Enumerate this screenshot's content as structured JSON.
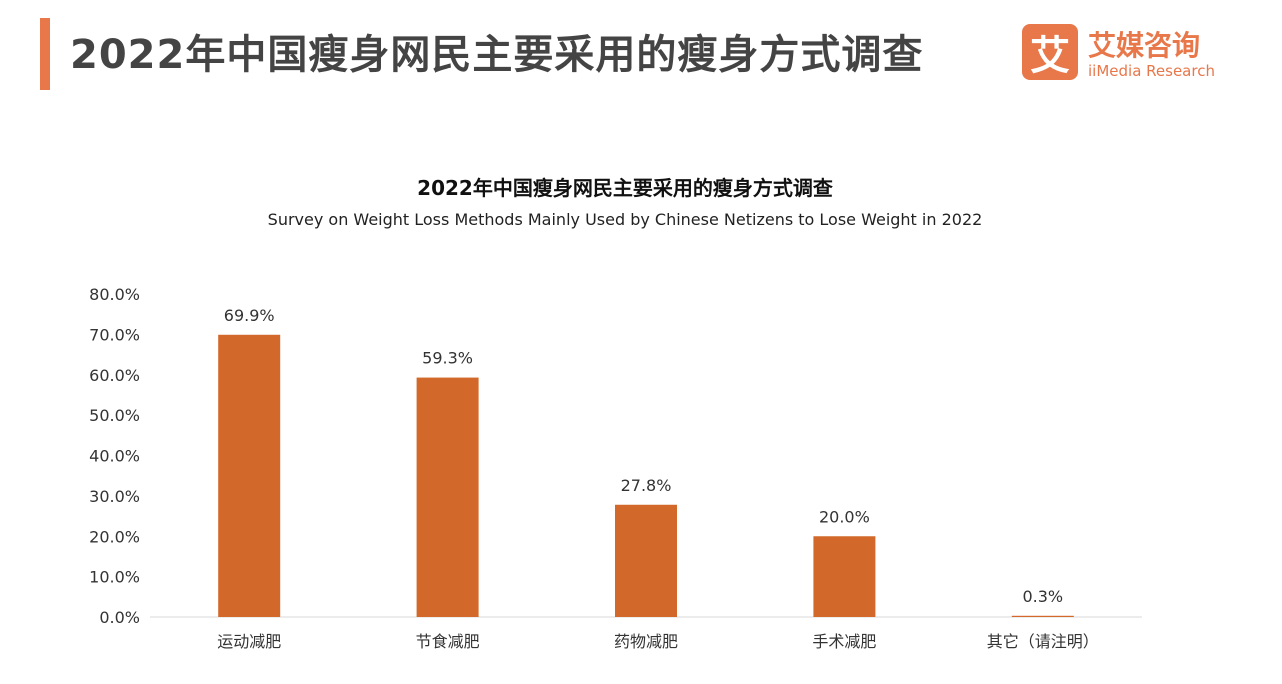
{
  "header": {
    "title": "2022年中国瘦身网民主要采用的瘦身方式调查",
    "accent_color": "#e8774a"
  },
  "logo": {
    "mark": "艾",
    "name_cn": "艾媒咨询",
    "name_en": "iiMedia Research",
    "color": "#e8774a"
  },
  "chart_data": {
    "type": "bar",
    "title": "2022年中国瘦身网民主要采用的瘦身方式调查",
    "subtitle": "Survey on Weight Loss Methods Mainly Used by Chinese Netizens to Lose Weight in 2022",
    "categories": [
      "运动减肥",
      "节食减肥",
      "药物减肥",
      "手术减肥",
      "其它（请注明）"
    ],
    "values": [
      69.9,
      59.3,
      27.8,
      20.0,
      0.3
    ],
    "value_labels": [
      "69.9%",
      "59.3%",
      "27.8%",
      "20.0%",
      "0.3%"
    ],
    "ylim": [
      0,
      80
    ],
    "y_ticks": [
      0,
      10,
      20,
      30,
      40,
      50,
      60,
      70,
      80
    ],
    "y_tick_labels": [
      "0.0%",
      "10.0%",
      "20.0%",
      "30.0%",
      "40.0%",
      "50.0%",
      "60.0%",
      "70.0%",
      "80.0%"
    ],
    "grid": false,
    "bar_color": "#d2692a"
  }
}
